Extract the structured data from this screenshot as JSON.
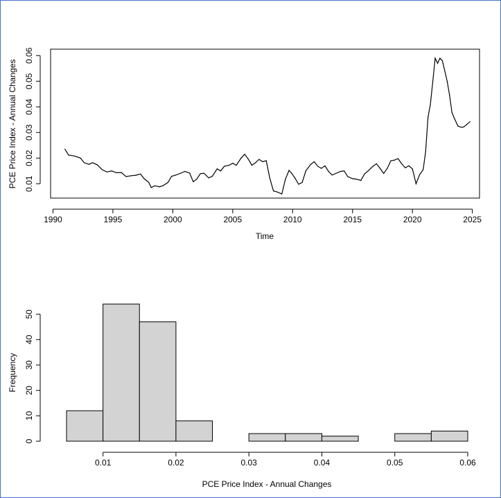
{
  "chart_data": [
    {
      "type": "line",
      "title": "",
      "xlabel": "Time",
      "ylabel": "PCE Price Index - Annual Changes",
      "xlim": [
        1989.8,
        2025.6
      ],
      "ylim": [
        0.0044,
        0.0625
      ],
      "x_ticks": [
        1990,
        1995,
        2000,
        2005,
        2010,
        2015,
        2020,
        2025
      ],
      "y_ticks": [
        0.01,
        0.02,
        0.03,
        0.04,
        0.05,
        0.06
      ],
      "x_tick_labels": [
        "1990",
        "1995",
        "2000",
        "2005",
        "2010",
        "2015",
        "2020",
        "2025"
      ],
      "y_tick_labels": [
        "0.01",
        "0.02",
        "0.03",
        "0.04",
        "0.05",
        "0.06"
      ],
      "grid": false,
      "series": [
        {
          "name": "",
          "x": [
            1991.0,
            1991.3,
            1991.8,
            1992.3,
            1992.6,
            1993.0,
            1993.3,
            1993.7,
            1994.1,
            1994.5,
            1994.9,
            1995.3,
            1995.7,
            1996.1,
            1996.5,
            1996.9,
            1997.3,
            1997.6,
            1998.0,
            1998.2,
            1998.5,
            1998.9,
            1999.2,
            1999.6,
            1999.9,
            2000.2,
            2000.6,
            2001.0,
            2001.4,
            2001.7,
            2002.0,
            2002.3,
            2002.6,
            2003.0,
            2003.3,
            2003.7,
            2004.0,
            2004.3,
            2004.7,
            2005.0,
            2005.3,
            2005.7,
            2006.0,
            2006.3,
            2006.6,
            2006.9,
            2007.2,
            2007.5,
            2007.8,
            2008.1,
            2008.4,
            2008.7,
            2009.1,
            2009.4,
            2009.7,
            2009.9,
            2010.2,
            2010.5,
            2010.8,
            2011.1,
            2011.5,
            2011.8,
            2012.1,
            2012.4,
            2012.7,
            2013.0,
            2013.3,
            2013.6,
            2014.0,
            2014.3,
            2014.6,
            2015.0,
            2015.3,
            2015.7,
            2016.0,
            2016.3,
            2016.7,
            2017.0,
            2017.3,
            2017.6,
            2017.9,
            2018.2,
            2018.5,
            2018.8,
            2019.1,
            2019.4,
            2019.7,
            2020.0,
            2020.3,
            2020.6,
            2020.9,
            2021.1,
            2021.3,
            2021.5,
            2021.7,
            2021.9,
            2022.1,
            2022.3,
            2022.5,
            2022.7,
            2022.9,
            2023.1,
            2023.3,
            2023.5,
            2023.8,
            2024.1,
            2024.3,
            2024.5,
            2024.8
          ],
          "y": [
            0.0235,
            0.0212,
            0.0208,
            0.02,
            0.0182,
            0.0176,
            0.0182,
            0.0174,
            0.0155,
            0.0146,
            0.015,
            0.0143,
            0.0144,
            0.0128,
            0.0131,
            0.0133,
            0.0138,
            0.012,
            0.0105,
            0.0085,
            0.0092,
            0.0088,
            0.0093,
            0.0105,
            0.0129,
            0.0133,
            0.014,
            0.0148,
            0.0142,
            0.0108,
            0.0118,
            0.0139,
            0.0141,
            0.0123,
            0.0129,
            0.0158,
            0.015,
            0.0168,
            0.0172,
            0.018,
            0.0172,
            0.02,
            0.0215,
            0.0196,
            0.0172,
            0.0182,
            0.0195,
            0.0186,
            0.019,
            0.0121,
            0.0072,
            0.0068,
            0.006,
            0.0118,
            0.0152,
            0.0142,
            0.0122,
            0.0098,
            0.0105,
            0.015,
            0.0175,
            0.0186,
            0.0168,
            0.016,
            0.017,
            0.0148,
            0.0134,
            0.014,
            0.0148,
            0.015,
            0.0128,
            0.012,
            0.0118,
            0.0113,
            0.0138,
            0.015,
            0.0168,
            0.0178,
            0.016,
            0.014,
            0.016,
            0.019,
            0.0192,
            0.0198,
            0.0178,
            0.0162,
            0.017,
            0.0158,
            0.01,
            0.0135,
            0.0155,
            0.0225,
            0.036,
            0.041,
            0.05,
            0.059,
            0.057,
            0.059,
            0.058,
            0.054,
            0.05,
            0.0445,
            0.0378,
            0.0355,
            0.0325,
            0.032,
            0.0322,
            0.033,
            0.0342
          ]
        }
      ]
    },
    {
      "type": "histogram",
      "title": "",
      "xlabel": "PCE Price Index - Annual Changes",
      "ylabel": "Frequency",
      "xlim": [
        0.005,
        0.06
      ],
      "ylim": [
        0,
        54
      ],
      "x_ticks": [
        0.01,
        0.02,
        0.03,
        0.04,
        0.05,
        0.06
      ],
      "y_ticks": [
        0,
        10,
        20,
        30,
        40,
        50
      ],
      "x_tick_labels": [
        "0.01",
        "0.02",
        "0.03",
        "0.04",
        "0.05",
        "0.06"
      ],
      "y_tick_labels": [
        "0",
        "10",
        "20",
        "30",
        "40",
        "50"
      ],
      "grid": false,
      "bin_edges": [
        0.005,
        0.01,
        0.015,
        0.02,
        0.025,
        0.03,
        0.035,
        0.04,
        0.045,
        0.05,
        0.055,
        0.06
      ],
      "values": [
        12,
        54,
        47,
        8,
        0,
        3,
        3,
        2,
        0,
        3,
        4
      ],
      "bar_color": "#d3d3d3"
    }
  ]
}
